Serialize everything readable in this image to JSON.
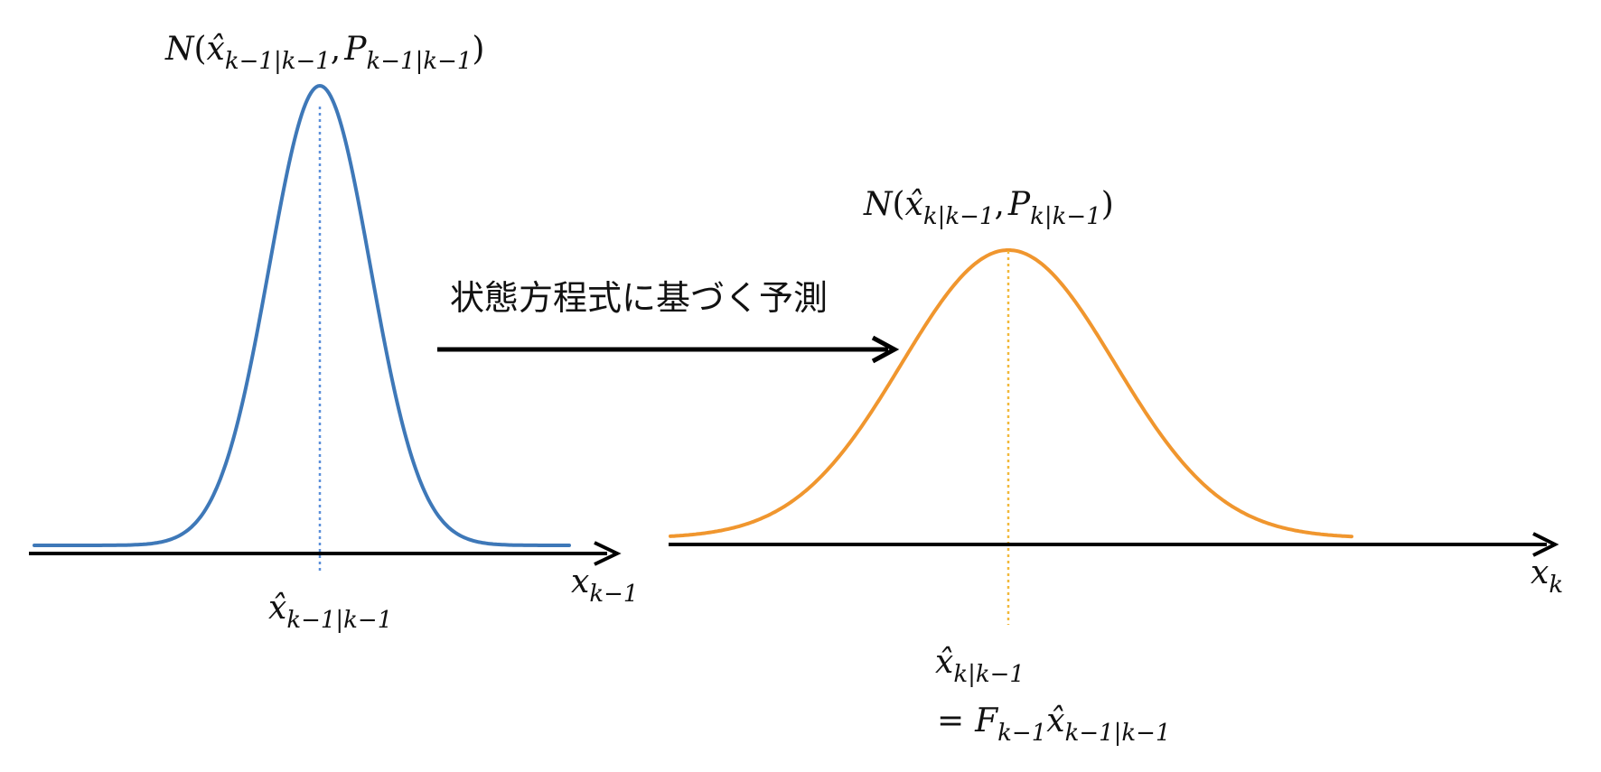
{
  "colors": {
    "prior_curve": "#3e78b8",
    "prior_mean_line": "#5b8fd9",
    "predicted_curve": "#f0962e",
    "predicted_mean_line": "#f2b93b",
    "axis": "#000000"
  },
  "arrow_label": "状態方程式に基づく予測",
  "prior": {
    "dist_N": "N",
    "dist_open": "(",
    "dist_xhat": "x̂",
    "dist_xhat_sub": "k−1|k−1",
    "dist_comma": ",",
    "dist_P": "P",
    "dist_P_sub": "k−1|k−1",
    "dist_close": ")",
    "mean_xhat": "x̂",
    "mean_sub": "k−1|k−1",
    "axis_x": "x",
    "axis_sub": "k−1"
  },
  "predicted": {
    "dist_N": "N",
    "dist_open": "(",
    "dist_xhat": "x̂",
    "dist_xhat_sub": "k|k−1",
    "dist_comma": ",",
    "dist_P": "P",
    "dist_P_sub": "k|k−1",
    "dist_close": ")",
    "mean_xhat": "x̂",
    "mean_sub": "k|k−1",
    "eq_sign": "=",
    "eq_F": "F",
    "eq_F_sub": "k−1",
    "eq_xhat": "x̂",
    "eq_xhat_sub": "k−1|k−1",
    "axis_x": "x",
    "axis_sub": "k"
  }
}
